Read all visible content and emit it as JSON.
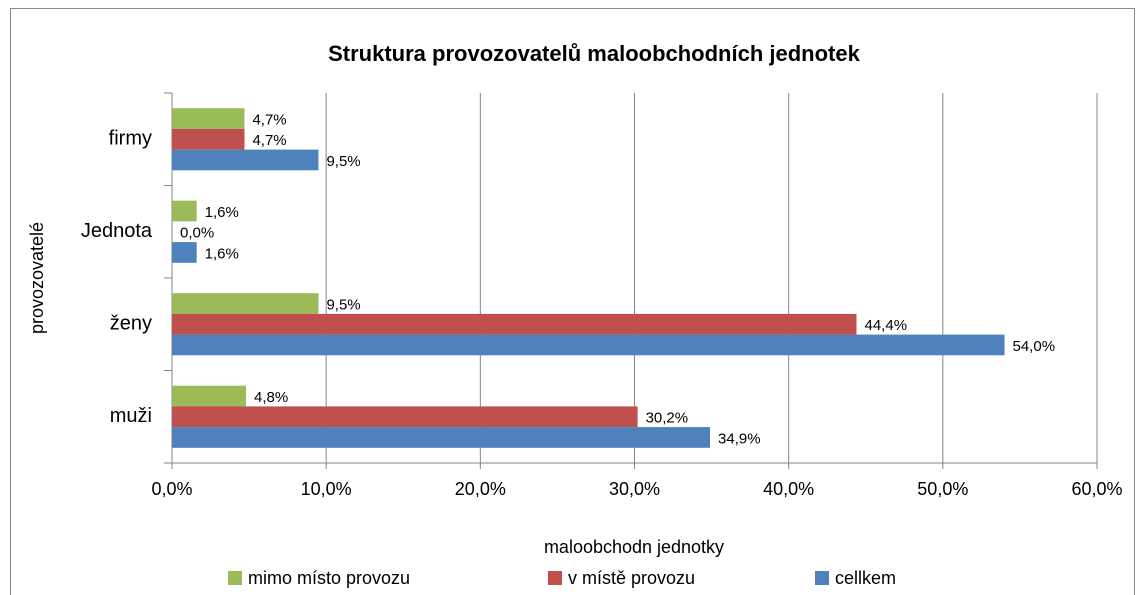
{
  "chart_data": {
    "type": "barh",
    "title": "Struktura provozovatelů maloobchodních jednotek",
    "x_label": "maloobchodn jednotky",
    "y_label": "provozovatelé",
    "categories": [
      "muži",
      "ženy",
      "Jednota",
      "firmy"
    ],
    "series": [
      {
        "name": "mimo místo provozu",
        "color": "#9bbb59",
        "values": [
          4.8,
          9.5,
          1.6,
          4.7
        ],
        "value_labels": [
          "4,8%",
          "9,5%",
          "1,6%",
          "4,7%"
        ]
      },
      {
        "name": "v místě provozu",
        "color": "#c0504d",
        "values": [
          30.2,
          44.4,
          0.0,
          4.7
        ],
        "value_labels": [
          "30,2%",
          "44,4%",
          "0,0%",
          "4,7%"
        ]
      },
      {
        "name": "cellkem",
        "color": "#4f81bd",
        "values": [
          34.9,
          54.0,
          1.6,
          9.5
        ],
        "value_labels": [
          "34,9%",
          "54,0%",
          "1,6%",
          "9,5%"
        ]
      }
    ],
    "xlim": [
      0,
      60
    ],
    "xticks": [
      {
        "value": 0,
        "label": "0,0%"
      },
      {
        "value": 10,
        "label": "10,0%"
      },
      {
        "value": 20,
        "label": "20,0%"
      },
      {
        "value": 30,
        "label": "30,0%"
      },
      {
        "value": 40,
        "label": "40,0%"
      },
      {
        "value": 50,
        "label": "50,0%"
      },
      {
        "value": 60,
        "label": "60,0%"
      }
    ],
    "grid": true,
    "legend": "bottom"
  }
}
